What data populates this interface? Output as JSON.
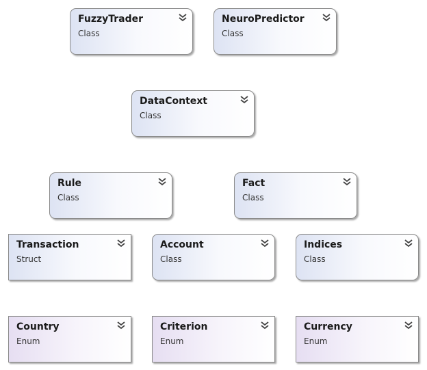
{
  "shapes": [
    {
      "name": "FuzzyTrader",
      "kind": "Class"
    },
    {
      "name": "NeuroPredictor",
      "kind": "Class"
    },
    {
      "name": "DataContext",
      "kind": "Class"
    },
    {
      "name": "Rule",
      "kind": "Class"
    },
    {
      "name": "Fact",
      "kind": "Class"
    },
    {
      "name": "Transaction",
      "kind": "Struct"
    },
    {
      "name": "Account",
      "kind": "Class"
    },
    {
      "name": "Indices",
      "kind": "Class"
    },
    {
      "name": "Country",
      "kind": "Enum"
    },
    {
      "name": "Criterion",
      "kind": "Enum"
    },
    {
      "name": "Currency",
      "kind": "Enum"
    }
  ],
  "expand_icon": "double-chevron-down-icon"
}
